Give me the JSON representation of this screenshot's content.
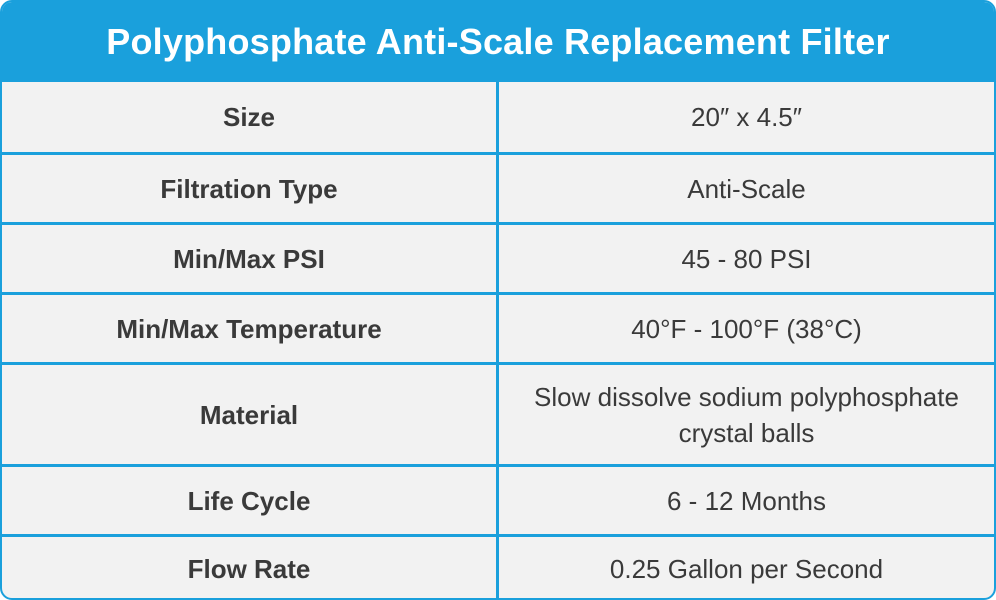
{
  "header": {
    "title": "Polyphosphate Anti-Scale Replacement Filter"
  },
  "colors": {
    "accent": "#1aa0dc",
    "row_background": "#f2f2f2",
    "text": "#3a3a3a",
    "header_text": "#ffffff"
  },
  "rows": [
    {
      "label": "Size",
      "value": "20″ x 4.5″"
    },
    {
      "label": "Filtration Type",
      "value": "Anti-Scale"
    },
    {
      "label": "Min/Max PSI",
      "value": "45 - 80 PSI"
    },
    {
      "label": "Min/Max Temperature",
      "value": "40°F - 100°F (38°C)"
    },
    {
      "label": "Material",
      "value": "Slow dissolve sodium polyphosphate crystal balls"
    },
    {
      "label": "Life Cycle",
      "value": "6 - 12 Months"
    },
    {
      "label": "Flow Rate",
      "value": "0.25 Gallon per Second"
    }
  ]
}
